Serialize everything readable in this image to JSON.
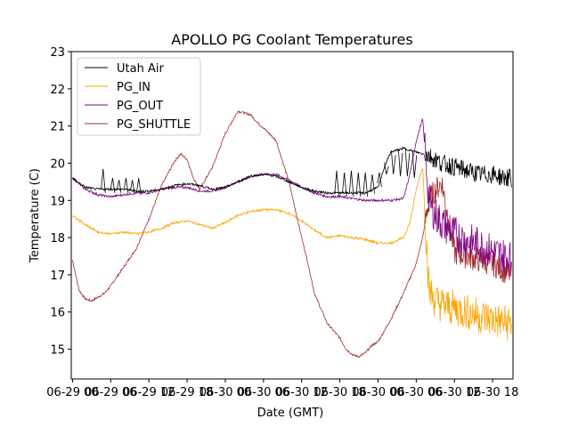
{
  "chart_data": {
    "type": "line",
    "title": "APOLLO PG Coolant Temperatures",
    "xlabel": "Date (GMT)",
    "ylabel": "Temperature (C)",
    "x_unit": "hours since 06-29 00:00 GMT",
    "xlim": [
      -0.2,
      69.2
    ],
    "ylim": [
      14.2,
      23
    ],
    "yticks": [
      15,
      16,
      17,
      18,
      19,
      20,
      21,
      22,
      23
    ],
    "xticks": [
      {
        "x": 0,
        "label": "06-29 00"
      },
      {
        "x": 6,
        "label": "06-29 06"
      },
      {
        "x": 12,
        "label": "06-29 12"
      },
      {
        "x": 18,
        "label": "06-29 18"
      },
      {
        "x": 24,
        "label": "06-30 00"
      },
      {
        "x": 30,
        "label": "06-30 06"
      },
      {
        "x": 36,
        "label": "06-30 12"
      },
      {
        "x": 42,
        "label": "06-30 18"
      },
      {
        "x": 48,
        "label": "06-30 00"
      },
      {
        "x": 54,
        "label": "06-30 06"
      },
      {
        "x": 60,
        "label": "06-30 12"
      },
      {
        "x": 66,
        "label": "06-30 18"
      }
    ],
    "legend_position": "top-left",
    "series": [
      {
        "name": "Utah Air",
        "color": "#000000",
        "x": [
          0,
          2,
          4,
          6,
          8,
          10,
          12,
          14,
          16,
          18,
          20,
          22,
          24,
          26,
          28,
          30,
          32,
          34,
          36,
          38,
          40,
          42,
          44,
          46,
          48,
          49,
          50,
          52,
          54,
          56,
          58,
          60,
          62,
          64,
          66,
          68,
          69
        ],
        "y": [
          19.6,
          19.35,
          19.3,
          19.3,
          19.3,
          19.25,
          19.25,
          19.3,
          19.4,
          19.45,
          19.4,
          19.3,
          19.35,
          19.5,
          19.65,
          19.7,
          19.65,
          19.5,
          19.35,
          19.25,
          19.2,
          19.2,
          19.2,
          19.2,
          19.35,
          19.9,
          20.3,
          20.4,
          20.3,
          20.2,
          20.0,
          19.9,
          19.8,
          19.7,
          19.7,
          19.6,
          19.6
        ],
        "spikes": [
          {
            "x": 4.8,
            "top": 19.85
          },
          {
            "x": 6.3,
            "top": 19.6
          },
          {
            "x": 7.3,
            "top": 19.55
          },
          {
            "x": 8.4,
            "top": 19.6
          },
          {
            "x": 9.4,
            "top": 19.55
          },
          {
            "x": 10.4,
            "top": 19.6
          },
          {
            "x": 41.5,
            "top": 19.8
          },
          {
            "x": 42.7,
            "top": 19.75
          },
          {
            "x": 43.8,
            "top": 19.8
          },
          {
            "x": 44.9,
            "top": 19.75
          },
          {
            "x": 46.0,
            "top": 19.75
          },
          {
            "x": 47.1,
            "top": 19.7
          },
          {
            "x": 48.2,
            "top": 19.75
          },
          {
            "x": 49.3,
            "top": 19.7
          },
          {
            "x": 50.4,
            "top": 19.7
          },
          {
            "x": 51.5,
            "top": 19.65
          },
          {
            "x": 52.6,
            "top": 19.65
          },
          {
            "x": 53.7,
            "top": 19.6
          }
        ]
      },
      {
        "name": "PG_IN",
        "color": "#ffa500",
        "x": [
          0,
          2,
          4,
          6,
          8,
          10,
          12,
          14,
          16,
          18,
          20,
          22,
          24,
          26,
          28,
          30,
          32,
          34,
          36,
          38,
          40,
          42,
          44,
          46,
          48,
          50,
          52,
          53,
          54,
          55,
          56,
          57,
          58,
          60,
          62,
          64,
          66,
          68,
          69
        ],
        "y": [
          18.6,
          18.35,
          18.15,
          18.1,
          18.15,
          18.1,
          18.15,
          18.25,
          18.4,
          18.45,
          18.35,
          18.25,
          18.4,
          18.6,
          18.7,
          18.75,
          18.75,
          18.65,
          18.45,
          18.2,
          18.0,
          18.05,
          18.0,
          17.95,
          17.85,
          17.85,
          18.0,
          18.4,
          19.3,
          19.9,
          16.6,
          16.3,
          16.2,
          16.1,
          16.0,
          15.9,
          15.8,
          15.7,
          15.7
        ]
      },
      {
        "name": "PG_OUT",
        "color": "#800080",
        "x": [
          0,
          2,
          4,
          6,
          8,
          10,
          12,
          14,
          16,
          18,
          20,
          22,
          24,
          26,
          28,
          30,
          32,
          34,
          36,
          38,
          40,
          42,
          44,
          46,
          48,
          50,
          52,
          53,
          54,
          55,
          56,
          57,
          58,
          60,
          62,
          64,
          66,
          68,
          69
        ],
        "y": [
          19.6,
          19.3,
          19.15,
          19.1,
          19.15,
          19.2,
          19.2,
          19.3,
          19.35,
          19.35,
          19.25,
          19.25,
          19.35,
          19.5,
          19.65,
          19.7,
          19.7,
          19.55,
          19.35,
          19.2,
          19.1,
          19.1,
          19.05,
          19.0,
          19.0,
          19.0,
          19.05,
          19.7,
          20.6,
          21.2,
          19.0,
          18.6,
          18.4,
          18.1,
          17.9,
          17.8,
          17.6,
          17.5,
          17.4
        ]
      },
      {
        "name": "PG_SHUTTLE",
        "color": "#a52a2a",
        "x": [
          0,
          1,
          2,
          3,
          4,
          5,
          6,
          8,
          10,
          12,
          14,
          16,
          17,
          18,
          19,
          20,
          22,
          24,
          26,
          28,
          29,
          30,
          32,
          34,
          36,
          37,
          38,
          40,
          42,
          43,
          44,
          45,
          46,
          47,
          48,
          50,
          52,
          54,
          55,
          56,
          58,
          60,
          62,
          64,
          66,
          68,
          69
        ],
        "y": [
          17.4,
          16.6,
          16.35,
          16.3,
          16.4,
          16.5,
          16.7,
          17.2,
          17.7,
          18.5,
          19.4,
          20.05,
          20.25,
          20.1,
          19.6,
          19.3,
          19.9,
          20.8,
          21.4,
          21.3,
          21.1,
          20.95,
          20.6,
          19.5,
          18.0,
          17.3,
          16.5,
          15.7,
          15.3,
          15.0,
          14.85,
          14.8,
          14.9,
          15.1,
          15.2,
          15.8,
          16.5,
          17.3,
          18.0,
          19.0,
          19.5,
          17.6,
          17.5,
          17.4,
          17.3,
          17.1,
          17.0
        ]
      }
    ]
  }
}
